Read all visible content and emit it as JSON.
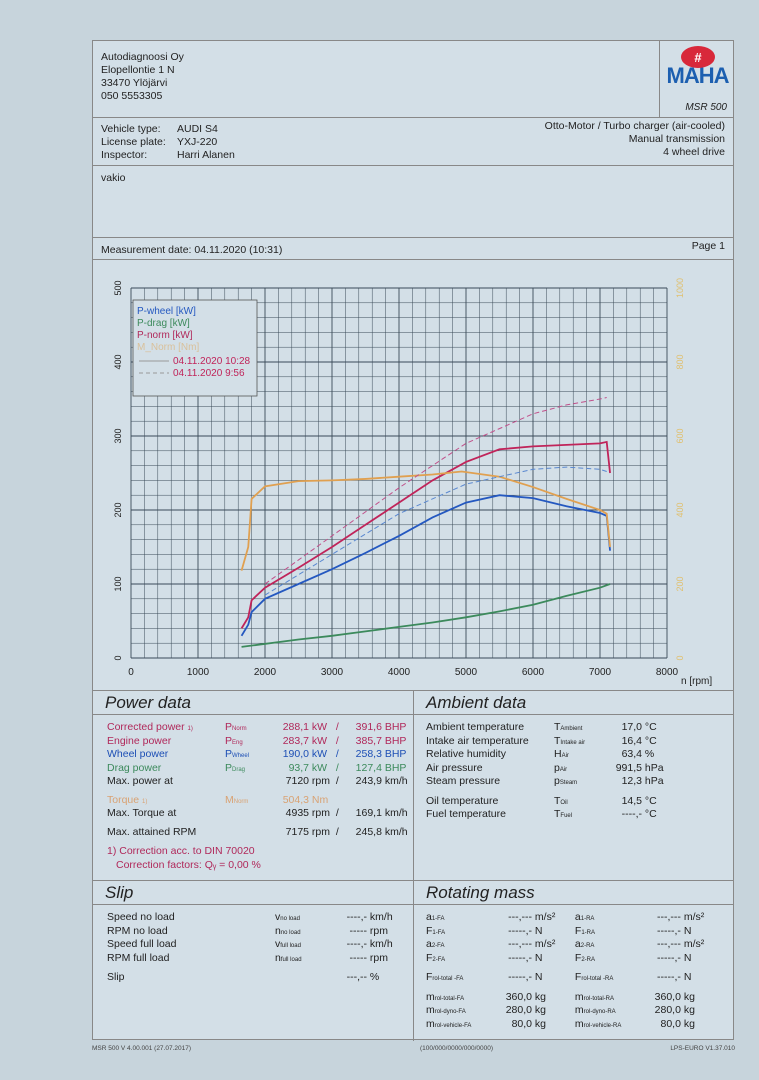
{
  "header": {
    "company": "Autodiagnoosi Oy",
    "street": "Elopellontie 1 N",
    "city": "33470 Ylöjärvi",
    "phone": "050 5553305",
    "brand": "MAHA",
    "model": "MSR 500"
  },
  "vehicle": {
    "type_label": "Vehicle type:",
    "type": "AUDI S4",
    "plate_label": "License plate:",
    "plate": "YXJ-220",
    "inspector_label": "Inspector:",
    "inspector": "Harri Alanen",
    "engine": "Otto-Motor / Turbo charger (air-cooled)",
    "transmission": "Manual transmission",
    "drive": "4 wheel drive"
  },
  "notes": "vakio",
  "measurement": {
    "date": "Measurement date: 04.11.2020 (10:31)",
    "page": "Page 1"
  },
  "chart_data": {
    "type": "line",
    "xlabel": "n [rpm]",
    "x_ticks": [
      "0",
      "1000",
      "2000",
      "3000",
      "4000",
      "5000",
      "6000",
      "7000",
      "8000"
    ],
    "xlim": [
      0,
      8000
    ],
    "y_left_ticks": [
      "0",
      "100",
      "200",
      "300",
      "400",
      "500"
    ],
    "ylim_left": [
      0,
      500
    ],
    "y_right_ticks": [
      "0",
      "200",
      "400",
      "600",
      "800",
      "1000"
    ],
    "ylim_right": [
      0,
      1000
    ],
    "grid": true,
    "legend_position": "top-left",
    "legend": [
      "P-wheel [kW]",
      "P-drag [kW]",
      "P-norm [kW]",
      "M_Norm [Nm]"
    ],
    "runs": [
      "04.11.2020 10:28",
      "04.11.2020 9:56"
    ],
    "series": [
      {
        "name": "P-norm [kW]",
        "run": "04.11.2020 10:28",
        "axis": "left",
        "color": "#c0245a",
        "dash": false,
        "x": [
          1650,
          1750,
          1800,
          2000,
          2500,
          3000,
          3500,
          4000,
          4500,
          5000,
          5500,
          6000,
          6500,
          7000,
          7100,
          7150
        ],
        "y": [
          40,
          55,
          78,
          95,
          122,
          150,
          180,
          210,
          240,
          265,
          282,
          286,
          288,
          290,
          292,
          250
        ]
      },
      {
        "name": "P-wheel [kW]",
        "run": "04.11.2020 10:28",
        "axis": "left",
        "color": "#2458c0",
        "dash": false,
        "x": [
          1650,
          1750,
          1800,
          2000,
          2500,
          3000,
          3500,
          4000,
          4500,
          5000,
          5500,
          6000,
          6500,
          7000,
          7100,
          7150
        ],
        "y": [
          30,
          45,
          62,
          80,
          100,
          120,
          142,
          165,
          190,
          210,
          220,
          216,
          205,
          196,
          192,
          145
        ]
      },
      {
        "name": "P-drag [kW]",
        "run": "04.11.2020 10:28",
        "axis": "left",
        "color": "#3c8a5c",
        "dash": false,
        "x": [
          1650,
          2500,
          3000,
          3500,
          4000,
          4500,
          5000,
          5500,
          6000,
          6500,
          7000,
          7150
        ],
        "y": [
          15,
          25,
          30,
          36,
          42,
          48,
          55,
          63,
          72,
          84,
          95,
          100
        ]
      },
      {
        "name": "M_Norm [Nm]",
        "run": "04.11.2020 10:28",
        "axis": "right",
        "color": "#e0a050",
        "dash": false,
        "x": [
          1650,
          1750,
          1800,
          2000,
          2500,
          3000,
          3500,
          4000,
          4500,
          4935,
          5500,
          6000,
          6500,
          7000,
          7100,
          7150
        ],
        "y": [
          236,
          300,
          430,
          464,
          478,
          480,
          484,
          490,
          496,
          504,
          490,
          462,
          430,
          400,
          390,
          300
        ]
      },
      {
        "name": "P-norm [kW]",
        "run": "04.11.2020 9:56",
        "axis": "left",
        "color": "#c0508a",
        "dash": true,
        "x": [
          2000,
          3000,
          4000,
          5000,
          6000,
          6500,
          7000,
          7100
        ],
        "y": [
          100,
          165,
          230,
          290,
          330,
          342,
          350,
          352
        ]
      },
      {
        "name": "P-wheel [kW]",
        "run": "04.11.2020 9:56",
        "axis": "left",
        "color": "#5a88d0",
        "dash": true,
        "x": [
          2000,
          3000,
          4000,
          5000,
          6000,
          6500,
          7000,
          7100
        ],
        "y": [
          85,
          140,
          195,
          235,
          255,
          258,
          255,
          252
        ]
      }
    ]
  },
  "power": {
    "title": "Power data",
    "rows": [
      {
        "label": "Corrected power",
        "sup": "1)",
        "sym": "P",
        "sub": "Norm",
        "kw": "288,1",
        "kw_unit": "kW",
        "bhp": "391,6",
        "bhp_unit": "BHP",
        "cls": "norm"
      },
      {
        "label": "Engine power",
        "sup": "",
        "sym": "P",
        "sub": "Eng",
        "kw": "283,7",
        "kw_unit": "kW",
        "bhp": "385,7",
        "bhp_unit": "BHP",
        "cls": "eng"
      },
      {
        "label": "Wheel power",
        "sup": "",
        "sym": "P",
        "sub": "Wheel",
        "kw": "190,0",
        "kw_unit": "kW",
        "bhp": "258,3",
        "bhp_unit": "BHP",
        "cls": "wheel"
      },
      {
        "label": "Drag power",
        "sup": "",
        "sym": "P",
        "sub": "Drag",
        "kw": "93,7",
        "kw_unit": "kW",
        "bhp": "127,4",
        "bhp_unit": "BHP",
        "cls": "drag"
      },
      {
        "label": "Max. power at",
        "sup": "",
        "sym": "",
        "sub": "",
        "kw": "7120",
        "kw_unit": "rpm",
        "bhp": "243,9",
        "bhp_unit": "km/h",
        "cls": ""
      }
    ],
    "torque": {
      "label": "Torque",
      "sup": "1)",
      "sym": "M",
      "sub": "Norm",
      "val": "504,3",
      "unit": "Nm"
    },
    "max_torque": {
      "label": "Max. Torque at",
      "rpm": "4935",
      "rpm_unit": "rpm",
      "speed": "169,1",
      "speed_unit": "km/h"
    },
    "max_rpm": {
      "label": "Max. attained RPM",
      "rpm": "7175",
      "rpm_unit": "rpm",
      "speed": "245,8",
      "speed_unit": "km/h"
    },
    "footnote1": "1) Correction acc. to DIN 70020",
    "footnote2": "Correction factors: Qᵧ =   0,00 %"
  },
  "ambient": {
    "title": "Ambient data",
    "rows": [
      {
        "label": "Ambient temperature",
        "sym": "T",
        "sub": "Ambient",
        "val": "17,0",
        "unit": "°C"
      },
      {
        "label": "Intake air temperature",
        "sym": "T",
        "sub": "Intake air",
        "val": "16,4",
        "unit": "°C"
      },
      {
        "label": "Relative humidity",
        "sym": "H",
        "sub": "Air",
        "val": "63,4",
        "unit": "%"
      },
      {
        "label": "Air pressure",
        "sym": "p",
        "sub": "Air",
        "val": "991,5",
        "unit": "hPa"
      },
      {
        "label": "Steam pressure",
        "sym": "p",
        "sub": "Steam",
        "val": "12,3",
        "unit": "hPa"
      },
      {
        "label": "Oil temperature",
        "sym": "T",
        "sub": "Oil",
        "val": "14,5",
        "unit": "°C"
      },
      {
        "label": "Fuel temperature",
        "sym": "T",
        "sub": "Fuel",
        "val": "----,-",
        "unit": "°C"
      }
    ]
  },
  "slip": {
    "title": "Slip",
    "rows": [
      {
        "label": "Speed no load",
        "sym": "v",
        "sub": "no load",
        "val": "----,-",
        "unit": "km/h"
      },
      {
        "label": "RPM no load",
        "sym": "n",
        "sub": "no load",
        "val": "-----",
        "unit": "rpm"
      },
      {
        "label": "Speed full load",
        "sym": "v",
        "sub": "full load",
        "val": "----,-",
        "unit": "km/h"
      },
      {
        "label": "RPM full load",
        "sym": "n",
        "sub": "full load",
        "val": "-----",
        "unit": "rpm"
      },
      {
        "label": "Slip",
        "sym": "",
        "sub": "",
        "val": "---,--",
        "unit": "%"
      }
    ]
  },
  "rotating": {
    "title": "Rotating mass",
    "rows": [
      [
        {
          "sym": "a",
          "sub": "1-FA",
          "val": "---,---",
          "unit": "m/s²"
        },
        {
          "sym": "a",
          "sub": "1-RA",
          "val": "---,---",
          "unit": "m/s²"
        }
      ],
      [
        {
          "sym": "F",
          "sub": "1-FA",
          "val": "-----,-",
          "unit": "N"
        },
        {
          "sym": "F",
          "sub": "1-RA",
          "val": "-----,-",
          "unit": "N"
        }
      ],
      [
        {
          "sym": "a",
          "sub": "2-FA",
          "val": "---,---",
          "unit": "m/s²"
        },
        {
          "sym": "a",
          "sub": "2-RA",
          "val": "---,---",
          "unit": "m/s²"
        }
      ],
      [
        {
          "sym": "F",
          "sub": "2-FA",
          "val": "-----,-",
          "unit": "N"
        },
        {
          "sym": "F",
          "sub": "2-RA",
          "val": "-----,-",
          "unit": "N"
        }
      ],
      [
        {
          "sym": "F",
          "sub": "rol-total -FA",
          "val": "-----,-",
          "unit": "N"
        },
        {
          "sym": "F",
          "sub": "rol-total -RA",
          "val": "-----,-",
          "unit": "N"
        }
      ],
      [
        {
          "sym": "m",
          "sub": "rol-total-FA",
          "val": "360,0",
          "unit": "kg"
        },
        {
          "sym": "m",
          "sub": "rol-total-RA",
          "val": "360,0",
          "unit": "kg"
        }
      ],
      [
        {
          "sym": "m",
          "sub": "rol-dyno-FA",
          "val": "280,0",
          "unit": "kg"
        },
        {
          "sym": "m",
          "sub": "rol-dyno-RA",
          "val": "280,0",
          "unit": "kg"
        }
      ],
      [
        {
          "sym": "m",
          "sub": "rol-vehicle-FA",
          "val": "80,0",
          "unit": "kg"
        },
        {
          "sym": "m",
          "sub": "rol-vehicle-RA",
          "val": "80,0",
          "unit": "kg"
        }
      ]
    ]
  },
  "footer": {
    "left": "MSR 500 V 4.00.001 (27.07.2017)",
    "center": "(100/000/0000/000/0000)",
    "right": "LPS-EURO V1.37.010"
  }
}
